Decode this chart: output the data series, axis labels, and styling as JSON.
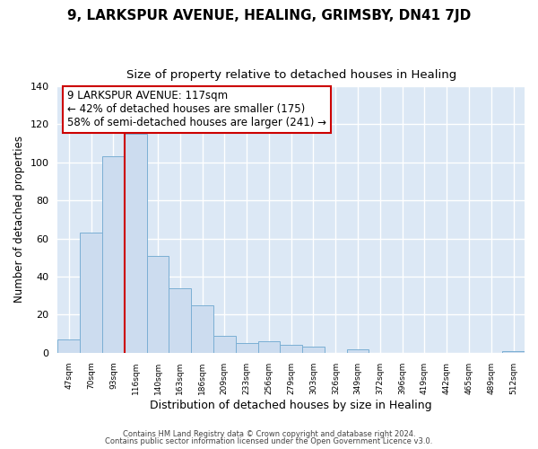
{
  "title": "9, LARKSPUR AVENUE, HEALING, GRIMSBY, DN41 7JD",
  "subtitle": "Size of property relative to detached houses in Healing",
  "xlabel": "Distribution of detached houses by size in Healing",
  "ylabel": "Number of detached properties",
  "bar_labels": [
    "47sqm",
    "70sqm",
    "93sqm",
    "116sqm",
    "140sqm",
    "163sqm",
    "186sqm",
    "209sqm",
    "233sqm",
    "256sqm",
    "279sqm",
    "303sqm",
    "326sqm",
    "349sqm",
    "372sqm",
    "396sqm",
    "419sqm",
    "442sqm",
    "465sqm",
    "489sqm",
    "512sqm"
  ],
  "bar_values": [
    7,
    63,
    103,
    115,
    51,
    34,
    25,
    9,
    5,
    6,
    4,
    3,
    0,
    2,
    0,
    0,
    0,
    0,
    0,
    0,
    1
  ],
  "bar_color": "#ccdcef",
  "bar_edge_color": "#7bafd4",
  "vline_x_index": 3,
  "vline_color": "#cc0000",
  "annotation_title": "9 LARKSPUR AVENUE: 117sqm",
  "annotation_line1": "← 42% of detached houses are smaller (175)",
  "annotation_line2": "58% of semi-detached houses are larger (241) →",
  "annotation_box_edge": "#cc0000",
  "ylim": [
    0,
    140
  ],
  "yticks": [
    0,
    20,
    40,
    60,
    80,
    100,
    120,
    140
  ],
  "footer1": "Contains HM Land Registry data © Crown copyright and database right 2024.",
  "footer2": "Contains public sector information licensed under the Open Government Licence v3.0.",
  "bg_color": "#ffffff",
  "plot_bg_color": "#dce8f5",
  "grid_color": "#ffffff",
  "title_fontsize": 11,
  "subtitle_fontsize": 9.5,
  "annotation_fontsize": 8.5,
  "xlabel_fontsize": 9,
  "ylabel_fontsize": 8.5
}
